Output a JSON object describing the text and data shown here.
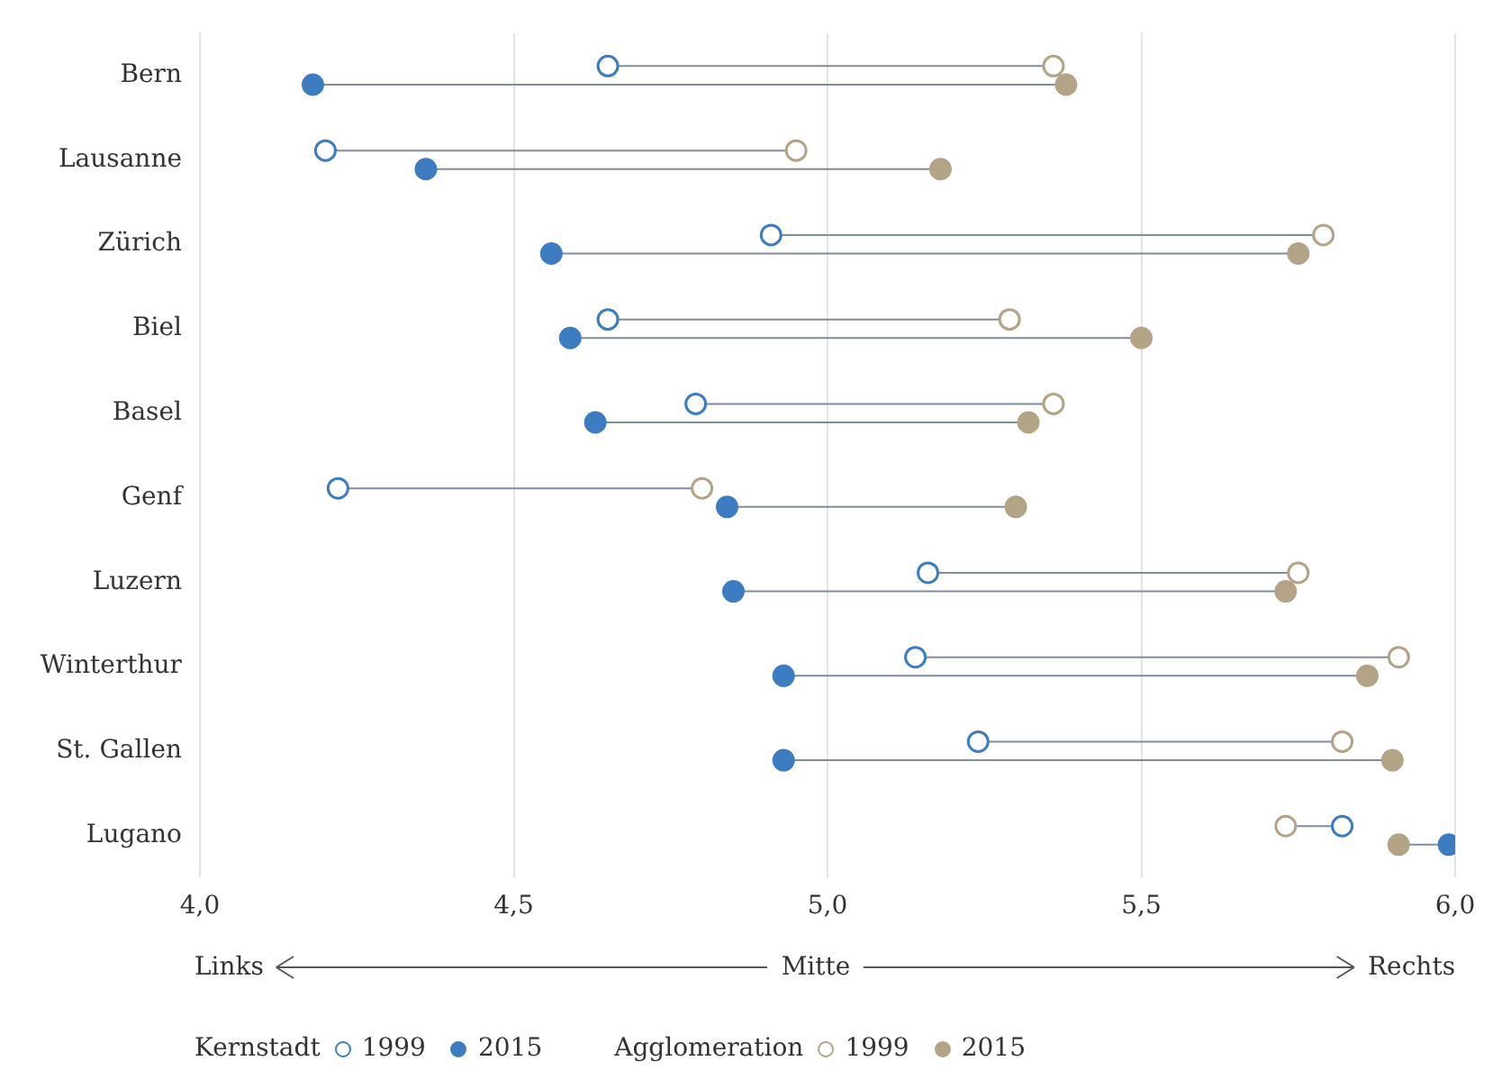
{
  "chart_data": {
    "type": "scatter",
    "orientation": "horizontal",
    "categories": [
      "Bern",
      "Lausanne",
      "Zürich",
      "Biel",
      "Basel",
      "Genf",
      "Luzern",
      "Winterthur",
      "St. Gallen",
      "Lugano"
    ],
    "series": [
      {
        "name": "1999",
        "color": "#3d7cc0",
        "values": [
          4.65,
          4.2,
          4.91,
          4.65,
          4.79,
          4.22,
          5.16,
          5.14,
          5.24,
          5.82
        ]
      },
      {
        "name": "2015",
        "color": "#3d7cc0",
        "values": [
          4.18,
          4.36,
          4.56,
          4.59,
          4.63,
          4.84,
          4.85,
          4.93,
          4.93,
          5.99
        ]
      },
      {
        "name": "1999",
        "color": "#b3a387",
        "values": [
          5.36,
          4.95,
          5.79,
          5.29,
          5.36,
          4.8,
          5.75,
          5.91,
          5.82,
          5.73
        ]
      },
      {
        "name": "2015",
        "color": "#b3a387",
        "values": [
          5.38,
          5.18,
          5.75,
          5.5,
          5.32,
          5.3,
          5.73,
          5.86,
          5.9,
          5.91
        ]
      }
    ],
    "xlim": [
      4,
      6
    ],
    "xticks": [
      {
        "value": 4,
        "label": "4,0"
      },
      {
        "value": 4.5,
        "label": "4,5"
      },
      {
        "value": 5,
        "label": "5,0"
      },
      {
        "value": 5.5,
        "label": "5,5"
      },
      {
        "value": 6,
        "label": "6,0"
      }
    ],
    "grid": "x",
    "legend": "bottom",
    "marker": "circle",
    "annotations": [
      "Links",
      "Mitte",
      "Rechts",
      "Kernstadt",
      "Agglomeration"
    ]
  }
}
